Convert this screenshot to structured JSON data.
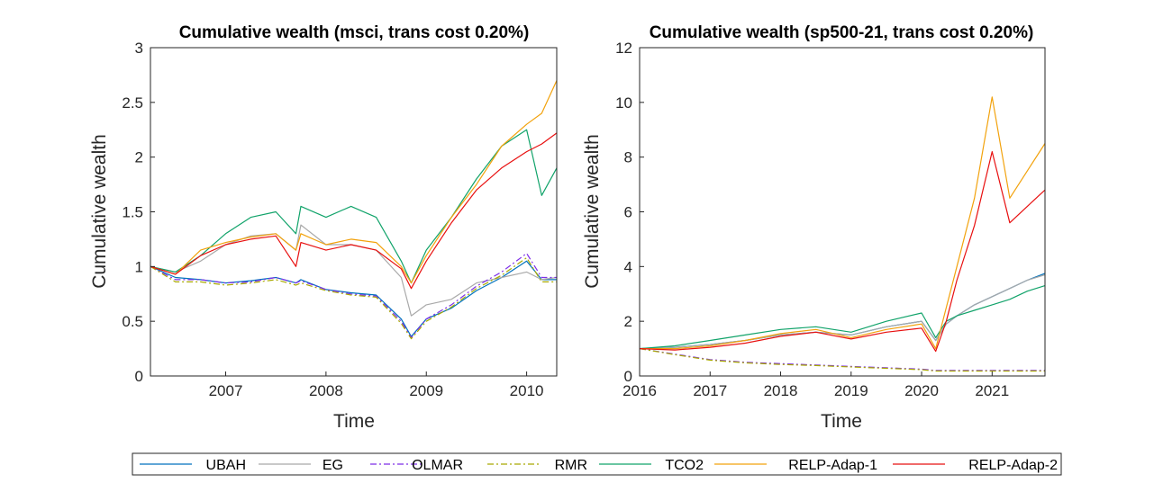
{
  "legend": {
    "entries": [
      {
        "name": "UBAH",
        "color": "#0072BD",
        "dash": "solid"
      },
      {
        "name": "EG",
        "color": "#A9A9A9",
        "dash": "solid"
      },
      {
        "name": "OLMAR",
        "color": "#7E2FE8",
        "dash": "dashdot"
      },
      {
        "name": "RMR",
        "color": "#A9A900",
        "dash": "dashdot"
      },
      {
        "name": "TCO2",
        "color": "#11A36A",
        "dash": "solid"
      },
      {
        "name": "RELP-Adap-1",
        "color": "#F2A20C",
        "dash": "solid"
      },
      {
        "name": "RELP-Adap-2",
        "color": "#E81010",
        "dash": "solid"
      }
    ]
  },
  "chart_data": [
    {
      "type": "line",
      "title": "Cumulative wealth (msci, trans cost 0.20%)",
      "xlabel": "Time",
      "ylabel": "Cumulative wealth",
      "xlim": [
        2006.25,
        2010.3
      ],
      "ylim": [
        0,
        3
      ],
      "xticks": [
        2007,
        2008,
        2009,
        2010
      ],
      "xticklabels": [
        "2007",
        "2008",
        "2009",
        "2010"
      ],
      "yticks": [
        0,
        0.5,
        1,
        1.5,
        2,
        2.5,
        3
      ],
      "yticklabels": [
        "0",
        "0.5",
        "1",
        "1.5",
        "2",
        "2.5",
        "3"
      ],
      "x": [
        2006.25,
        2006.5,
        2006.75,
        2007.0,
        2007.25,
        2007.5,
        2007.7,
        2007.75,
        2008.0,
        2008.25,
        2008.5,
        2008.75,
        2008.85,
        2009.0,
        2009.25,
        2009.5,
        2009.75,
        2010.0,
        2010.15,
        2010.3
      ],
      "series": [
        {
          "name": "UBAH",
          "values": [
            1.0,
            0.9,
            0.88,
            0.85,
            0.87,
            0.9,
            0.85,
            0.88,
            0.79,
            0.76,
            0.74,
            0.52,
            0.36,
            0.52,
            0.62,
            0.78,
            0.9,
            1.05,
            0.88,
            0.88
          ]
        },
        {
          "name": "EG",
          "values": [
            1.0,
            0.95,
            1.05,
            1.2,
            1.28,
            1.3,
            1.15,
            1.38,
            1.2,
            1.2,
            1.15,
            0.9,
            0.55,
            0.65,
            0.7,
            0.85,
            0.9,
            0.95,
            0.88,
            0.9
          ]
        },
        {
          "name": "OLMAR",
          "values": [
            1.0,
            0.88,
            0.88,
            0.85,
            0.86,
            0.9,
            0.85,
            0.87,
            0.79,
            0.75,
            0.73,
            0.5,
            0.35,
            0.52,
            0.65,
            0.82,
            0.95,
            1.12,
            0.9,
            0.9
          ]
        },
        {
          "name": "RMR",
          "values": [
            1.0,
            0.86,
            0.86,
            0.83,
            0.85,
            0.88,
            0.83,
            0.85,
            0.78,
            0.74,
            0.72,
            0.48,
            0.34,
            0.5,
            0.63,
            0.8,
            0.92,
            1.08,
            0.86,
            0.86
          ]
        },
        {
          "name": "TCO2",
          "values": [
            1.0,
            0.95,
            1.1,
            1.3,
            1.45,
            1.5,
            1.3,
            1.55,
            1.45,
            1.55,
            1.45,
            1.05,
            0.85,
            1.15,
            1.45,
            1.8,
            2.1,
            2.25,
            1.65,
            1.9
          ]
        },
        {
          "name": "RELP-Adap-1",
          "values": [
            1.0,
            0.93,
            1.15,
            1.22,
            1.27,
            1.3,
            1.15,
            1.3,
            1.2,
            1.25,
            1.22,
            1.0,
            0.85,
            1.1,
            1.45,
            1.75,
            2.1,
            2.3,
            2.4,
            2.7
          ]
        },
        {
          "name": "RELP-Adap-2",
          "values": [
            1.0,
            0.93,
            1.1,
            1.2,
            1.25,
            1.28,
            1.0,
            1.22,
            1.15,
            1.2,
            1.15,
            0.98,
            0.8,
            1.05,
            1.4,
            1.7,
            1.9,
            2.05,
            2.12,
            2.22
          ]
        }
      ]
    },
    {
      "type": "line",
      "title": "Cumulative wealth (sp500-21, trans cost 0.20%)",
      "xlabel": "Time",
      "ylabel": "Cumulative wealth",
      "xlim": [
        2016,
        2021.75
      ],
      "ylim": [
        0,
        12
      ],
      "xticks": [
        2016,
        2017,
        2018,
        2019,
        2020,
        2021
      ],
      "xticklabels": [
        "2016",
        "2017",
        "2018",
        "2019",
        "2020",
        "2021"
      ],
      "yticks": [
        0,
        2,
        4,
        6,
        8,
        10,
        12
      ],
      "yticklabels": [
        "0",
        "2",
        "4",
        "6",
        "8",
        "10",
        "12"
      ],
      "x": [
        2016.0,
        2016.5,
        2017.0,
        2017.5,
        2018.0,
        2018.5,
        2019.0,
        2019.5,
        2020.0,
        2020.2,
        2020.35,
        2020.5,
        2020.75,
        2021.0,
        2021.25,
        2021.5,
        2021.75
      ],
      "series": [
        {
          "name": "UBAH",
          "values": [
            1.0,
            1.05,
            1.15,
            1.3,
            1.5,
            1.6,
            1.5,
            1.8,
            2.0,
            1.3,
            1.9,
            2.2,
            2.6,
            2.9,
            3.2,
            3.5,
            3.75
          ]
        },
        {
          "name": "EG",
          "values": [
            1.0,
            1.05,
            1.15,
            1.3,
            1.5,
            1.6,
            1.5,
            1.8,
            2.0,
            1.3,
            1.9,
            2.2,
            2.6,
            2.9,
            3.2,
            3.5,
            3.7
          ]
        },
        {
          "name": "OLMAR",
          "values": [
            1.0,
            0.8,
            0.6,
            0.5,
            0.45,
            0.4,
            0.35,
            0.3,
            0.25,
            0.2,
            0.2,
            0.2,
            0.2,
            0.2,
            0.2,
            0.2,
            0.2
          ]
        },
        {
          "name": "RMR",
          "values": [
            1.0,
            0.78,
            0.58,
            0.48,
            0.42,
            0.38,
            0.33,
            0.28,
            0.23,
            0.18,
            0.18,
            0.18,
            0.18,
            0.18,
            0.18,
            0.18,
            0.18
          ]
        },
        {
          "name": "TCO2",
          "values": [
            1.0,
            1.1,
            1.3,
            1.5,
            1.7,
            1.8,
            1.6,
            2.0,
            2.3,
            1.4,
            2.0,
            2.2,
            2.4,
            2.6,
            2.8,
            3.1,
            3.3
          ]
        },
        {
          "name": "RELP-Adap-1",
          "values": [
            1.0,
            1.0,
            1.1,
            1.3,
            1.55,
            1.7,
            1.4,
            1.7,
            1.9,
            1.0,
            2.5,
            4.0,
            6.5,
            10.2,
            6.5,
            7.5,
            8.5
          ]
        },
        {
          "name": "RELP-Adap-2",
          "values": [
            1.0,
            0.95,
            1.05,
            1.2,
            1.45,
            1.6,
            1.35,
            1.6,
            1.75,
            0.9,
            2.0,
            3.5,
            5.5,
            8.2,
            5.6,
            6.2,
            6.8
          ]
        }
      ]
    }
  ]
}
